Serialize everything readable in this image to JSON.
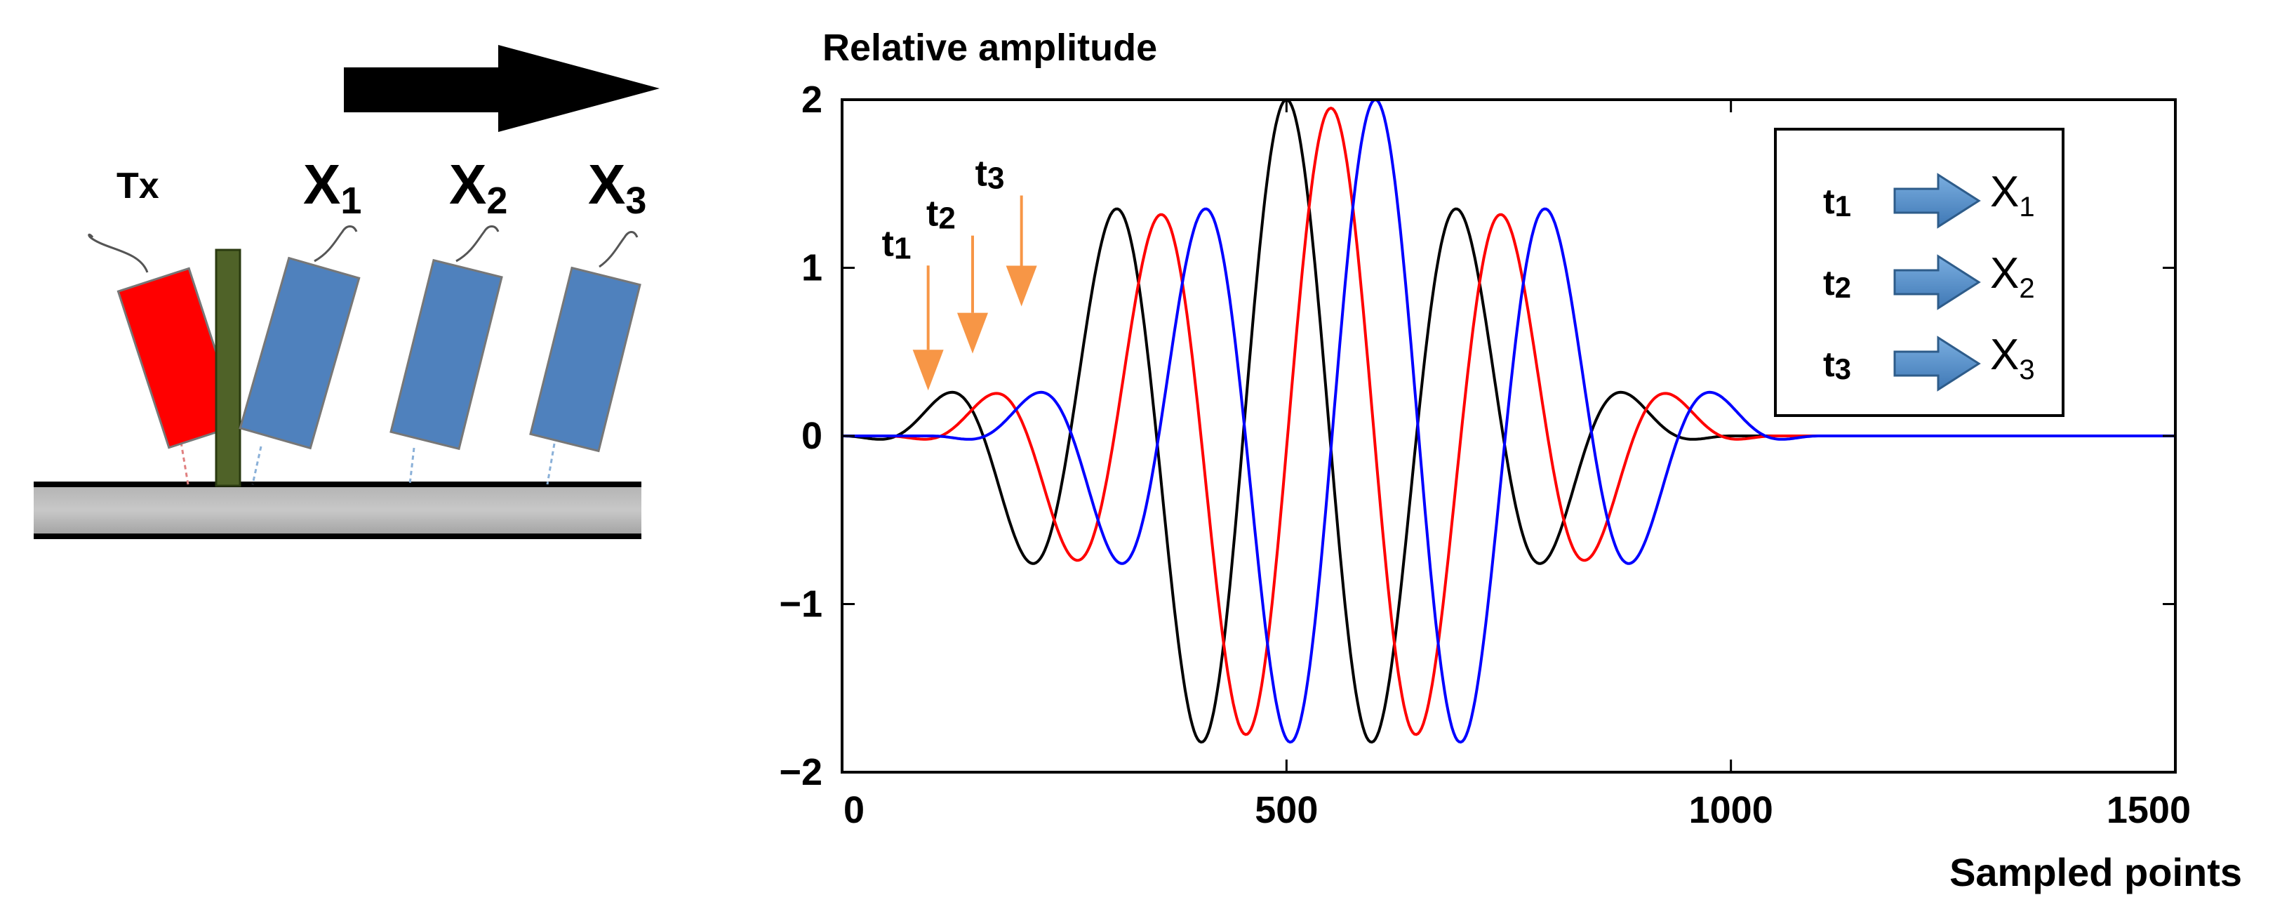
{
  "diagram": {
    "tx_label": "Tx",
    "receivers": [
      {
        "letter": "X",
        "sub": "1"
      },
      {
        "letter": "X",
        "sub": "2"
      },
      {
        "letter": "X",
        "sub": "3"
      }
    ],
    "colors": {
      "transmitter": "#ff0000",
      "receiver": "#4f81bd",
      "divider": "#4f6228",
      "arrow": "#000000"
    }
  },
  "chart_data": {
    "type": "line",
    "ylabel": "Relative amplitude",
    "xlabel": "Sampled points",
    "xlim": [
      0,
      1500
    ],
    "ylim": [
      -2,
      2
    ],
    "xticks": [
      "0",
      "500",
      "1000",
      "1500"
    ],
    "yticks": [
      "2",
      "1",
      "0",
      "−1",
      "−2"
    ],
    "grid": false,
    "series": [
      {
        "color": "#000000",
        "center": 500,
        "peak": 2.0,
        "period": 195,
        "start": 0,
        "end": 1000
      },
      {
        "color": "#ff0000",
        "center": 550,
        "peak": 1.95,
        "period": 195,
        "start": 50,
        "end": 1050
      },
      {
        "color": "#0000ff",
        "center": 600,
        "peak": 2.0,
        "period": 195,
        "start": 100,
        "end": 1100
      }
    ],
    "annotations": [
      {
        "main": "t",
        "sub": "1",
        "x": 100,
        "y": 0.22
      },
      {
        "main": "t",
        "sub": "2",
        "x": 150,
        "y": 0.44
      },
      {
        "main": "t",
        "sub": "3",
        "x": 205,
        "y": 0.72
      }
    ],
    "annotation_color": "#f79646",
    "legend": {
      "position": "top-right",
      "entries": [
        {
          "t_main": "t",
          "t_sub": "1",
          "x_main": "X",
          "x_sub": "1"
        },
        {
          "t_main": "t",
          "t_sub": "2",
          "x_main": "X",
          "x_sub": "2"
        },
        {
          "t_main": "t",
          "t_sub": "3",
          "x_main": "X",
          "x_sub": "3"
        }
      ]
    }
  }
}
